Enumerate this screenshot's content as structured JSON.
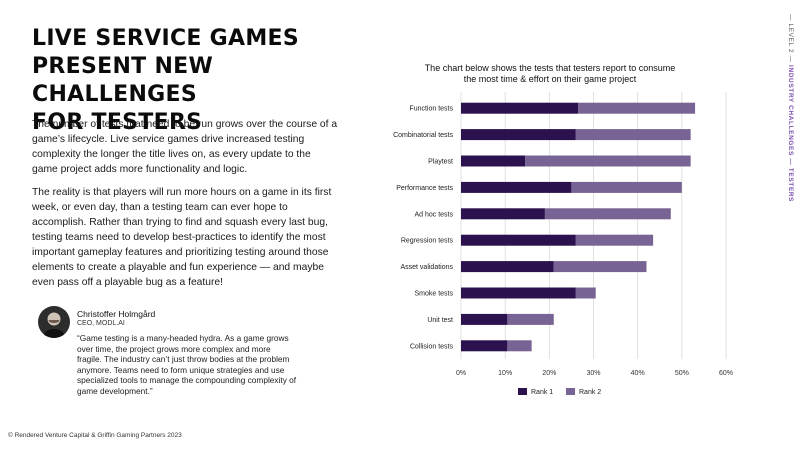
{
  "title_lines": [
    "LIVE SERVICE GAMES",
    "PRESENT NEW CHALLENGES",
    "FOR TESTERS"
  ],
  "paragraphs": [
    "The number of tests that need to be run grows over the course of a game’s lifecycle. Live service games drive increased testing complexity the longer the title lives on, as every update to the game project adds more functionality and logic.",
    "The reality is that players will run more hours on a game in its first week, or even day, than a testing team can ever hope to accomplish. Rather than trying to find and squash every last bug, testing teams need to develop best-practices to identify the most important gameplay features and prioritizing testing around those elements to create a playable and fun experience — and maybe even pass off a playable bug as a feature!"
  ],
  "quote": {
    "name": "Christoffer Holmgård",
    "role": "CEO, MODL.AI",
    "text": "“Game testing is a many-headed hydra. As a game grows over time, the project grows more complex and more fragile. The industry can’t just throw bodies at the problem anymore. Teams need to form unique strategies and use specialized tools to manage the compounding complexity of game development.”"
  },
  "side_label": {
    "level": "— LEVEL 2 —",
    "section": "INDUSTRY CHALLENGES — TESTERS"
  },
  "footer": "© Rendered Venture Capital & Griffin Gaming Partners 2023",
  "colors": {
    "rank1": "#2b114e",
    "rank2": "#786494",
    "grid": "#d9d9d9",
    "accent": "#7b4fb0"
  },
  "chart_data": {
    "type": "bar",
    "orientation": "horizontal",
    "stacked": true,
    "title": "The chart below shows the tests that testers report to consume the most time & effort on their game project",
    "categories": [
      "Function tests",
      "Combinatorial tests",
      "Playtest",
      "Performance tests",
      "Ad hoc tests",
      "Regression tests",
      "Asset validations",
      "Smoke tests",
      "Unit test",
      "Collision tests"
    ],
    "series": [
      {
        "name": "Rank 1",
        "values": [
          26.5,
          26,
          14.5,
          25,
          19,
          26,
          21,
          26,
          10.5,
          10.5
        ]
      },
      {
        "name": "Rank 2",
        "values": [
          26.5,
          26,
          37.5,
          25,
          28.5,
          17.5,
          21,
          4.5,
          10.5,
          5.5
        ]
      }
    ],
    "xlim": [
      0,
      60
    ],
    "xticks": [
      "0%",
      "10%",
      "20%",
      "30%",
      "40%",
      "50%",
      "60%"
    ],
    "grid": true,
    "legend": "bottom"
  }
}
